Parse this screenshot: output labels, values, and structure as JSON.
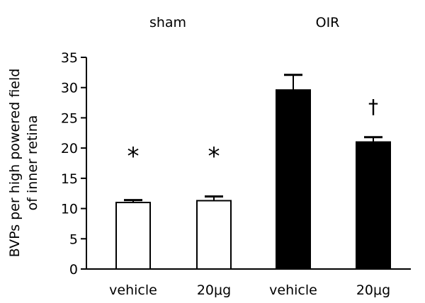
{
  "chart_data": {
    "type": "bar",
    "categories": [
      "vehicle",
      "20μg",
      "vehicle",
      "20μg"
    ],
    "groups": [
      {
        "label": "sham",
        "categories": [
          0,
          1
        ]
      },
      {
        "label": "OIR",
        "categories": [
          2,
          3
        ]
      }
    ],
    "values": [
      11.0,
      11.3,
      29.6,
      21.0
    ],
    "errors": [
      0.4,
      0.7,
      2.5,
      0.8
    ],
    "bar_fill": [
      "#ffffff",
      "#ffffff",
      "#000000",
      "#000000"
    ],
    "annotations": [
      "*",
      "*",
      "",
      "†"
    ],
    "ylabel_lines": [
      "BVPs per high powered field",
      "of inner retina"
    ],
    "ylim": [
      0,
      35
    ],
    "yticks": [
      0,
      5,
      10,
      15,
      20,
      25,
      30,
      35
    ],
    "xlabel": "",
    "title": "",
    "grid": false
  }
}
